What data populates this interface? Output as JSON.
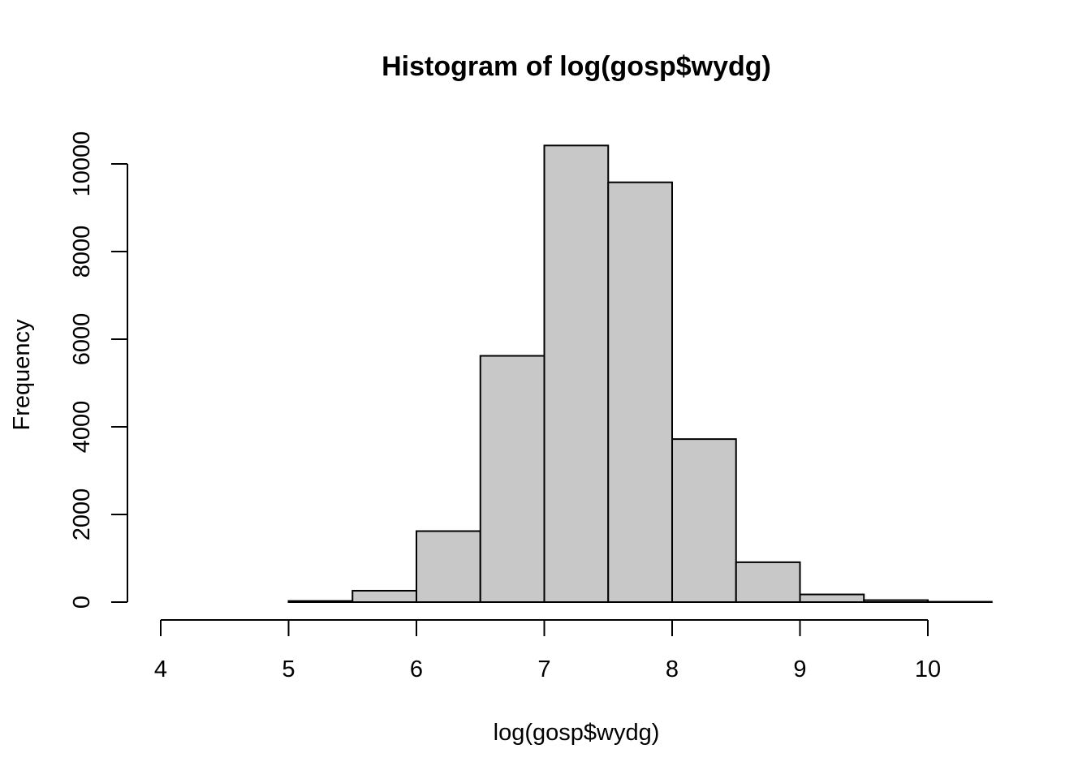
{
  "chart_data": {
    "type": "bar",
    "subtype": "histogram",
    "title": "Histogram of log(gosp$wydg)",
    "xlabel": "log(gosp$wydg)",
    "ylabel": "Frequency",
    "bar_color": "#c8c8c8",
    "bin_width": 0.5,
    "xlim": [
      4,
      10.5
    ],
    "ylim": [
      0,
      10400
    ],
    "x_ticks": [
      4,
      5,
      6,
      7,
      8,
      9,
      10
    ],
    "y_ticks": [
      0,
      2000,
      4000,
      6000,
      8000,
      10000
    ],
    "bins": [
      {
        "start": 4.0,
        "end": 4.5,
        "count": 0
      },
      {
        "start": 4.5,
        "end": 5.0,
        "count": 0
      },
      {
        "start": 5.0,
        "end": 5.5,
        "count": 25
      },
      {
        "start": 5.5,
        "end": 6.0,
        "count": 260
      },
      {
        "start": 6.0,
        "end": 6.5,
        "count": 1620
      },
      {
        "start": 6.5,
        "end": 7.0,
        "count": 5620
      },
      {
        "start": 7.0,
        "end": 7.5,
        "count": 10420
      },
      {
        "start": 7.5,
        "end": 8.0,
        "count": 9580
      },
      {
        "start": 8.0,
        "end": 8.5,
        "count": 3720
      },
      {
        "start": 8.5,
        "end": 9.0,
        "count": 910
      },
      {
        "start": 9.0,
        "end": 9.5,
        "count": 175
      },
      {
        "start": 9.5,
        "end": 10.0,
        "count": 45
      },
      {
        "start": 10.0,
        "end": 10.5,
        "count": 8
      }
    ]
  }
}
